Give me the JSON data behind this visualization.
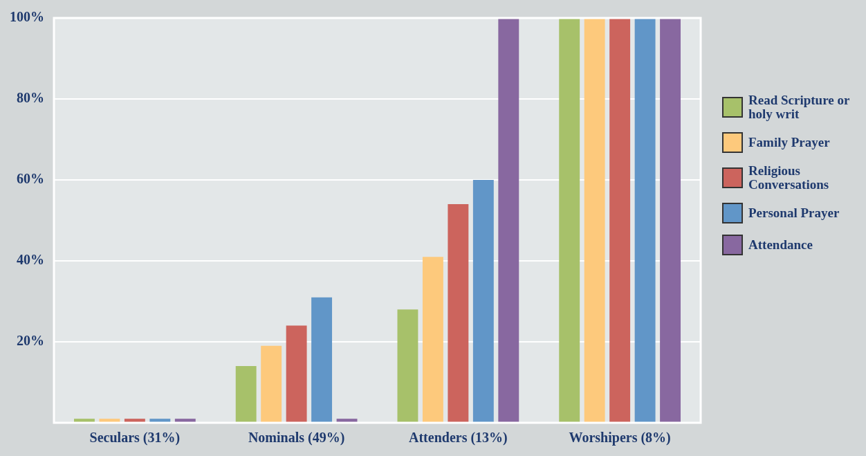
{
  "chart_data": {
    "type": "bar",
    "categories": [
      "Seculars (31%)",
      "Nominals (49%)",
      "Attenders (13%)",
      "Worshipers (8%)"
    ],
    "series": [
      {
        "name": "Read Scripture or holy writ",
        "color": "#a7c16a",
        "values": [
          1,
          14,
          28,
          100
        ]
      },
      {
        "name": "Family Prayer",
        "color": "#fdc97c",
        "values": [
          1,
          19,
          41,
          100
        ]
      },
      {
        "name": "Religious Conversations",
        "color": "#cc645d",
        "values": [
          1,
          24,
          54,
          100
        ]
      },
      {
        "name": "Personal Prayer",
        "color": "#6196c8",
        "values": [
          1,
          31,
          60,
          100
        ]
      },
      {
        "name": "Attendance",
        "color": "#8868a0",
        "values": [
          1,
          1,
          100,
          100
        ]
      }
    ],
    "ylim": [
      0,
      100
    ],
    "yticks": [
      {
        "value": 0,
        "label": null
      },
      {
        "value": 20,
        "label": "20%"
      },
      {
        "value": 40,
        "label": "40%"
      },
      {
        "value": 60,
        "label": "60%"
      },
      {
        "value": 80,
        "label": "80%"
      },
      {
        "value": 100,
        "label": "100%"
      }
    ],
    "grid": "y",
    "legend": "right"
  }
}
